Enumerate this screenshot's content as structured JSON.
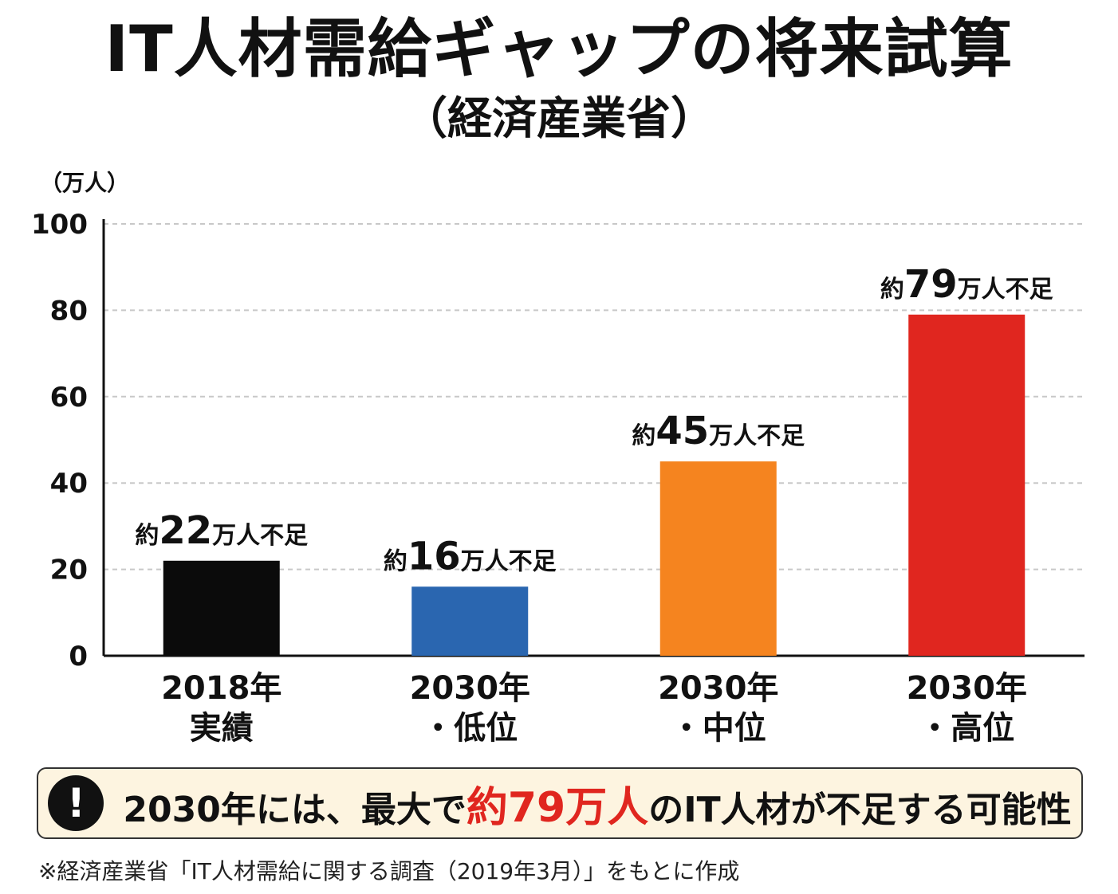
{
  "title": "IT人材需給ギャップの将来試算",
  "subtitle": "（経済産業省）",
  "unit_label": "（万人）",
  "colors": {
    "bar_2018": "#0b0b0b",
    "bar_low": "#2a66b0",
    "bar_mid": "#f5841f",
    "bar_high": "#e0261f",
    "highlight": "#e0261f",
    "callout_bg": "#fdf4e0"
  },
  "chart_data": {
    "type": "bar",
    "y_ticks": [
      "0",
      "20",
      "40",
      "60",
      "80",
      "100"
    ],
    "ylim": [
      0,
      100
    ],
    "grid": true,
    "bars": [
      {
        "category_line1": "2018年",
        "category_line2": "実績",
        "value": 22,
        "label_prefix": "約",
        "label_number": "22",
        "label_suffix": "万人不足",
        "color": "#0b0b0b"
      },
      {
        "category_line1": "2030年",
        "category_line2": "・低位",
        "value": 16,
        "label_prefix": "約",
        "label_number": "16",
        "label_suffix": "万人不足",
        "color": "#2a66b0"
      },
      {
        "category_line1": "2030年",
        "category_line2": "・中位",
        "value": 45,
        "label_prefix": "約",
        "label_number": "45",
        "label_suffix": "万人不足",
        "color": "#f5841f"
      },
      {
        "category_line1": "2030年",
        "category_line2": "・高位",
        "value": 79,
        "label_prefix": "約",
        "label_number": "79",
        "label_suffix": "万人不足",
        "color": "#e0261f"
      }
    ]
  },
  "callout": {
    "icon": "exclamation-icon",
    "icon_glyph": "!",
    "text_before": "2030年には、最大で",
    "text_highlight": "約79万人",
    "text_after": "のIT人材が不足する可能性"
  },
  "footnote": "※経済産業省「IT人材需給に関する調査（2019年3月）」をもとに作成"
}
